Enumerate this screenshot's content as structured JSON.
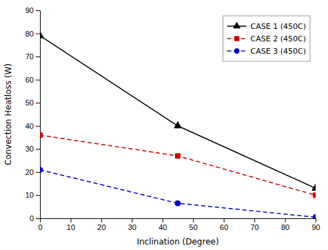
{
  "chart_data": {
    "type": "line",
    "xlabel": "Inclination (Degree)",
    "ylabel": "Convection Heatloss (W)",
    "x": [
      0,
      45,
      90
    ],
    "series": [
      {
        "name": "CASE 1 (450C)",
        "color": "#000000",
        "values": [
          79,
          40,
          13
        ],
        "marker": "triangle",
        "line_style": "solid"
      },
      {
        "name": "CASE 2 (450C)",
        "color": "#cc0000",
        "values": [
          36,
          27,
          10
        ],
        "marker": "square",
        "line_style": "dashed"
      },
      {
        "name": "CASE 3 (450C)",
        "color": "#0000cc",
        "values": [
          21,
          6.5,
          0.5
        ],
        "marker": "circle",
        "line_style": "dashed"
      }
    ],
    "xlim": [
      0,
      90
    ],
    "ylim": [
      0,
      90
    ],
    "xticks": [
      0,
      10,
      20,
      30,
      40,
      50,
      60,
      70,
      80,
      90
    ],
    "yticks": [
      0,
      10,
      20,
      30,
      40,
      50,
      60,
      70,
      80,
      90
    ],
    "legend": "upper right"
  }
}
